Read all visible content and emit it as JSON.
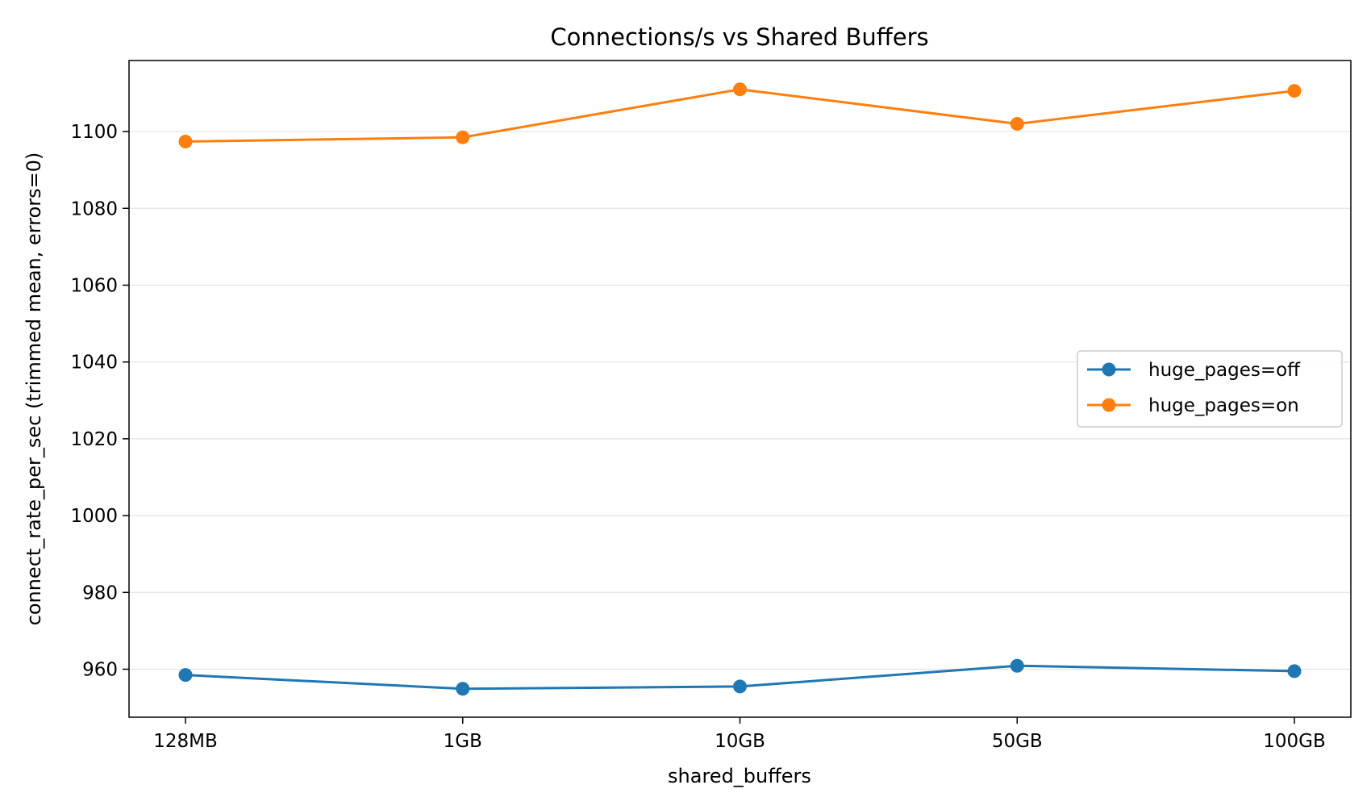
{
  "chart_data": {
    "type": "line",
    "title": "Connections/s vs Shared Buffers",
    "xlabel": "shared_buffers",
    "ylabel": "connect_rate_per_sec (trimmed mean, errors=0)",
    "categories": [
      "128MB",
      "1GB",
      "10GB",
      "50GB",
      "100GB"
    ],
    "ylim": [
      947.5,
      1118.5
    ],
    "yticks": [
      960,
      980,
      1000,
      1020,
      1040,
      1060,
      1080,
      1100
    ],
    "grid": "horizontal",
    "legend_position": "center-right",
    "series": [
      {
        "name": "huge_pages=off",
        "color": "#1f77b4",
        "values": [
          958.5,
          954.9,
          955.5,
          960.9,
          959.5
        ]
      },
      {
        "name": "huge_pages=on",
        "color": "#ff7f0e",
        "values": [
          1097.4,
          1098.5,
          1111.0,
          1102.0,
          1110.6
        ]
      }
    ]
  }
}
